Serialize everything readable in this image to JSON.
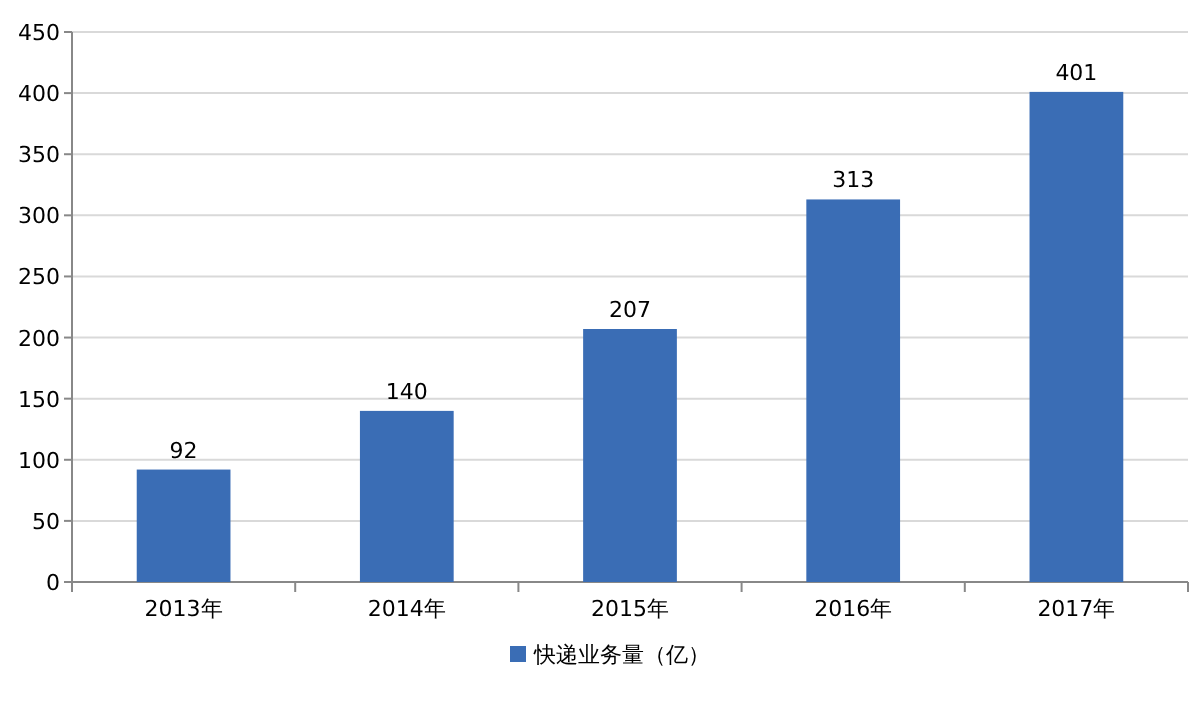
{
  "chart_data": {
    "type": "bar",
    "categories": [
      "2013年",
      "2014年",
      "2015年",
      "2016年",
      "2017年"
    ],
    "series": [
      {
        "name": "快递业务量（亿）",
        "color": "#3a6db5",
        "values": [
          92,
          140,
          207,
          313,
          401
        ]
      }
    ],
    "ylim": [
      0,
      450
    ],
    "yticks": [
      0,
      50,
      100,
      150,
      200,
      250,
      300,
      350,
      400,
      450
    ],
    "grid": "y",
    "legend": "bottom",
    "data_labels": true
  }
}
